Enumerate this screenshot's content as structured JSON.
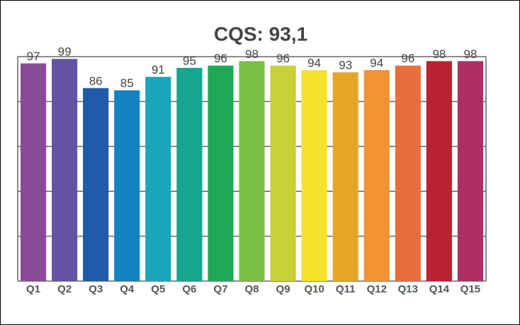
{
  "chart_data": {
    "type": "bar",
    "title": "CQS: 93,1",
    "categories": [
      "Q1",
      "Q2",
      "Q3",
      "Q4",
      "Q5",
      "Q6",
      "Q7",
      "Q8",
      "Q9",
      "Q10",
      "Q11",
      "Q12",
      "Q13",
      "Q14",
      "Q15"
    ],
    "values": [
      97,
      99,
      86,
      85,
      91,
      95,
      96,
      98,
      96,
      94,
      93,
      94,
      96,
      98,
      98
    ],
    "colors": [
      "#8b4a97",
      "#6353a2",
      "#1f5ba8",
      "#1283c0",
      "#18a6bb",
      "#16a58e",
      "#1fa957",
      "#7cbf45",
      "#c6d236",
      "#f5e22a",
      "#e5a628",
      "#f39332",
      "#ea6d3f",
      "#bc2131",
      "#ae2f64"
    ],
    "ylim": [
      0,
      100
    ],
    "yticks": [
      0,
      20,
      40,
      60,
      80,
      100
    ],
    "grid": true
  }
}
